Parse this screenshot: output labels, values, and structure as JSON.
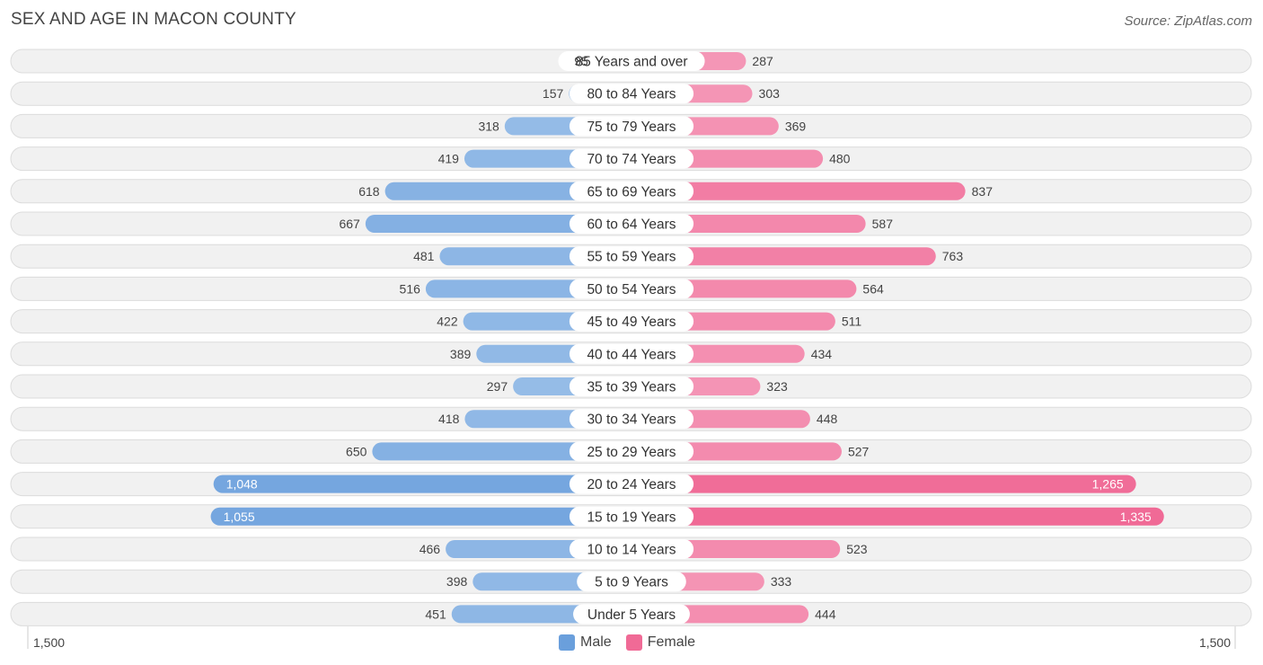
{
  "title": "SEX AND AGE IN MACON COUNTY",
  "source": "Source: ZipAtlas.com",
  "colors": {
    "male": "#6a9fdc",
    "male_light": "#a8c8ec",
    "female": "#f06a96",
    "female_light": "#f6a8c3",
    "row_bg": "#f1f1f1",
    "row_border": "#dcdcdc"
  },
  "legend": {
    "male": "Male",
    "female": "Female"
  },
  "axis": {
    "left_label": "1,500",
    "right_label": "1,500"
  },
  "chart_data": {
    "type": "bar",
    "orientation": "horizontal-diverging",
    "title": "SEX AND AGE IN MACON COUNTY",
    "xlim": [
      -1500,
      1500
    ],
    "categories": [
      "85 Years and over",
      "80 to 84 Years",
      "75 to 79 Years",
      "70 to 74 Years",
      "65 to 69 Years",
      "60 to 64 Years",
      "55 to 59 Years",
      "50 to 54 Years",
      "45 to 49 Years",
      "40 to 44 Years",
      "35 to 39 Years",
      "30 to 34 Years",
      "25 to 29 Years",
      "20 to 24 Years",
      "15 to 19 Years",
      "10 to 14 Years",
      "5 to 9 Years",
      "Under 5 Years"
    ],
    "series": [
      {
        "name": "Male",
        "values": [
          95,
          157,
          318,
          419,
          618,
          667,
          481,
          516,
          422,
          389,
          297,
          418,
          650,
          1048,
          1055,
          466,
          398,
          451
        ],
        "labels": [
          "95",
          "157",
          "318",
          "419",
          "618",
          "667",
          "481",
          "516",
          "422",
          "389",
          "297",
          "418",
          "650",
          "1,048",
          "1,055",
          "466",
          "398",
          "451"
        ]
      },
      {
        "name": "Female",
        "values": [
          287,
          303,
          369,
          480,
          837,
          587,
          763,
          564,
          511,
          434,
          323,
          448,
          527,
          1265,
          1335,
          523,
          333,
          444
        ],
        "labels": [
          "287",
          "303",
          "369",
          "480",
          "837",
          "587",
          "763",
          "564",
          "511",
          "434",
          "323",
          "448",
          "527",
          "1,265",
          "1,335",
          "523",
          "333",
          "444"
        ]
      }
    ],
    "legend_position": "bottom-center"
  }
}
